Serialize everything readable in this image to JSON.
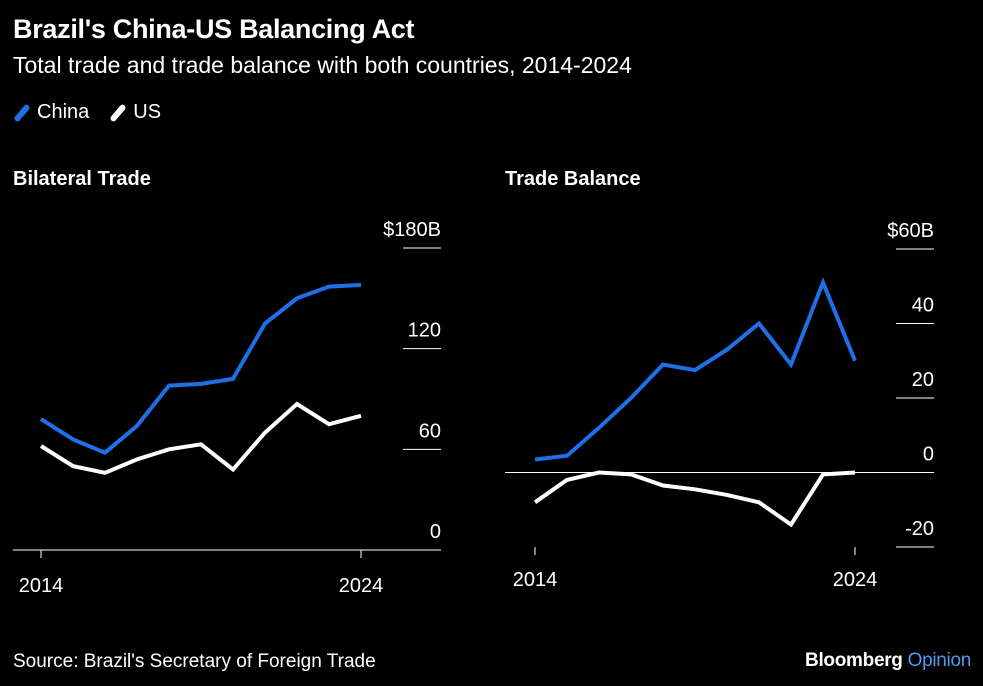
{
  "header": {
    "title": "Brazil's China-US Balancing Act",
    "subtitle": "Total trade and trade balance with both countries, 2014-2024"
  },
  "legend": [
    {
      "label": "China",
      "color": "#1f6fe8"
    },
    {
      "label": "US",
      "color": "#ffffff"
    }
  ],
  "footer": {
    "source": "Source: Brazil's Secretary of Foreign Trade",
    "brand_primary": "Bloomberg",
    "brand_secondary": "Opinion"
  },
  "chart_data": [
    {
      "type": "line",
      "title": "Bilateral Trade",
      "x": [
        2014,
        2015,
        2016,
        2017,
        2018,
        2019,
        2020,
        2021,
        2022,
        2023,
        2024
      ],
      "x_tick_labels": [
        "2014",
        "2024"
      ],
      "y_ticks": [
        0,
        60,
        120,
        180
      ],
      "y_tick_labels": [
        "0",
        "60",
        "120",
        "$180B"
      ],
      "ylim": [
        0,
        180
      ],
      "series": [
        {
          "name": "China",
          "color": "#1f6fe8",
          "values": [
            78,
            66,
            58,
            74,
            98,
            99,
            102,
            135,
            150,
            157,
            158
          ]
        },
        {
          "name": "US",
          "color": "#ffffff",
          "values": [
            62,
            50,
            46,
            54,
            60,
            63,
            48,
            70,
            87,
            75,
            80
          ]
        }
      ]
    },
    {
      "type": "line",
      "title": "Trade Balance",
      "x": [
        2014,
        2015,
        2016,
        2017,
        2018,
        2019,
        2020,
        2021,
        2022,
        2023,
        2024
      ],
      "x_tick_labels": [
        "2014",
        "2024"
      ],
      "y_ticks": [
        -20,
        0,
        20,
        40,
        60
      ],
      "y_tick_labels": [
        "-20",
        "0",
        "20",
        "40",
        "$60B"
      ],
      "ylim": [
        -20,
        60
      ],
      "zero_line": true,
      "series": [
        {
          "name": "China",
          "color": "#1f6fe8",
          "values": [
            3.5,
            4.5,
            12,
            20,
            29,
            27.5,
            33,
            40,
            29,
            51,
            30
          ]
        },
        {
          "name": "US",
          "color": "#ffffff",
          "values": [
            -8,
            -2,
            0,
            -0.5,
            -3.5,
            -4.5,
            -6,
            -8,
            -14,
            -0.5,
            0
          ]
        }
      ]
    }
  ]
}
